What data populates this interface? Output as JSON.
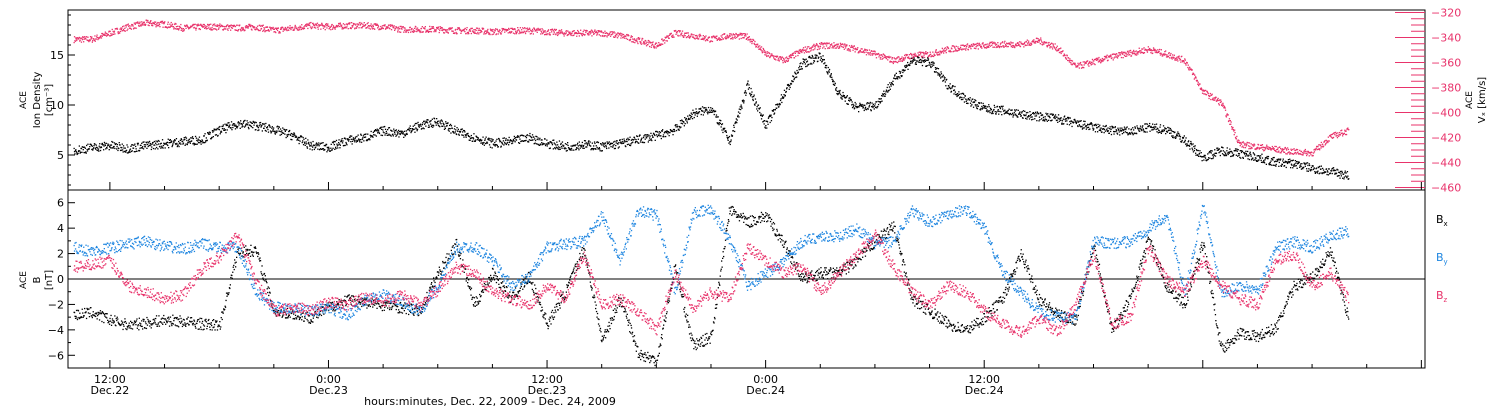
{
  "chart_data": [
    {
      "type": "scatter",
      "panel": "top",
      "ylabel_left": [
        "ACE",
        "Ion Density",
        "[cm⁻³]"
      ],
      "ylabel_right": [
        "ACE",
        "Vₓ [km/s]"
      ],
      "ylim_left": [
        1.5,
        19.5
      ],
      "ylim_right": [
        -462,
        -318
      ],
      "yticks_left": [
        5,
        10,
        15
      ],
      "yticks_right": [
        -320,
        -340,
        -360,
        -380,
        -400,
        -420,
        -440,
        -460
      ],
      "series": [
        {
          "name": "Ion Density",
          "axis": "left",
          "color": "#000000",
          "x": [
            -2,
            -1,
            0,
            1,
            2,
            3,
            4,
            5,
            6,
            7,
            8,
            9,
            10,
            11,
            12,
            13,
            14,
            15,
            16,
            17,
            18,
            19,
            20,
            21,
            22,
            23,
            24,
            25,
            26,
            27,
            28,
            29,
            30,
            31,
            32,
            33,
            34,
            35,
            36,
            37,
            38,
            39,
            40,
            41,
            42,
            43,
            44,
            45,
            46,
            47,
            48,
            49,
            50,
            51,
            52,
            53,
            54,
            55,
            56,
            57,
            58,
            59,
            60,
            61,
            62,
            63,
            64,
            65,
            66,
            67,
            68
          ],
          "y": [
            5.5,
            5.8,
            6,
            5.7,
            6,
            6.2,
            6.4,
            6.6,
            7.5,
            8.2,
            8,
            7.6,
            7,
            6,
            5.8,
            6.5,
            6.8,
            7.5,
            7.2,
            8,
            8.4,
            7.4,
            6.8,
            6.2,
            6.4,
            6.8,
            6.2,
            5.9,
            6.1,
            5.9,
            6.2,
            6.6,
            7,
            7.6,
            9.2,
            9.7,
            6.4,
            12,
            8,
            11.2,
            14.2,
            15,
            11.2,
            9.8,
            10,
            12.5,
            14.5,
            14.3,
            12,
            10.6,
            9.7,
            9.5,
            9.1,
            8.9,
            8.7,
            8.2,
            7.8,
            7.5,
            7.4,
            7.8,
            7.6,
            6.5,
            4.8,
            5.5,
            5.2,
            4.8,
            4.3,
            4.2,
            3.7,
            3.4,
            3.0
          ]
        },
        {
          "name": "Vx",
          "axis": "right",
          "color": "#e8336b",
          "x": [
            -2,
            -1,
            0,
            1,
            2,
            3,
            4,
            5,
            6,
            7,
            8,
            9,
            10,
            11,
            12,
            13,
            14,
            15,
            16,
            17,
            18,
            19,
            20,
            21,
            22,
            23,
            24,
            25,
            26,
            27,
            28,
            29,
            30,
            31,
            32,
            33,
            34,
            35,
            36,
            37,
            38,
            39,
            40,
            41,
            42,
            43,
            44,
            45,
            46,
            47,
            48,
            49,
            50,
            51,
            52,
            53,
            54,
            55,
            56,
            57,
            58,
            59,
            60,
            61,
            62,
            63,
            64,
            65,
            66,
            67,
            68
          ],
          "y": [
            -341,
            -341,
            -336,
            -331,
            -328,
            -329,
            -332,
            -331,
            -331,
            -332,
            -331,
            -334,
            -332,
            -330,
            -331,
            -330,
            -330,
            -331,
            -333,
            -333,
            -333,
            -334,
            -334,
            -335,
            -334,
            -334,
            -335,
            -336,
            -336,
            -336,
            -338,
            -342,
            -346,
            -336,
            -338,
            -341,
            -338,
            -339,
            -353,
            -358,
            -350,
            -346,
            -346,
            -349,
            -353,
            -358,
            -354,
            -353,
            -349,
            -347,
            -346,
            -345,
            -345,
            -342,
            -348,
            -363,
            -359,
            -355,
            -352,
            -349,
            -353,
            -358,
            -383,
            -392,
            -425,
            -427,
            -429,
            -431,
            -432,
            -419,
            -414
          ]
        }
      ]
    },
    {
      "type": "scatter",
      "panel": "bottom",
      "ylabel_left": [
        "ACE",
        "B",
        "[nT]"
      ],
      "ylim": [
        -7,
        7
      ],
      "yticks": [
        6,
        4,
        2,
        0,
        -2,
        -4,
        -6
      ],
      "zero_line": true,
      "series": [
        {
          "name": "Bx",
          "color": "#000000",
          "x": [
            -2,
            -1,
            0,
            1,
            2,
            3,
            4,
            5,
            6,
            7,
            8,
            9,
            10,
            11,
            12,
            13,
            14,
            15,
            16,
            17,
            18,
            19,
            20,
            21,
            22,
            23,
            24,
            25,
            26,
            27,
            28,
            29,
            30,
            31,
            32,
            33,
            34,
            35,
            36,
            37,
            38,
            39,
            40,
            41,
            42,
            43,
            44,
            45,
            46,
            47,
            48,
            49,
            50,
            51,
            52,
            53,
            54,
            55,
            56,
            57,
            58,
            59,
            60,
            61,
            62,
            63,
            64,
            65,
            66,
            67,
            68
          ],
          "y": [
            -2.8,
            -2.6,
            -3.2,
            -3.6,
            -3.4,
            -3.2,
            -3.3,
            -3.5,
            -3.6,
            2.2,
            2.3,
            -2.5,
            -2.7,
            -3.0,
            -2.2,
            -1.6,
            -1.8,
            -2.0,
            -2.2,
            -2.5,
            0.5,
            2.8,
            -2.0,
            0.5,
            -1.5,
            0.2,
            -3.5,
            -1.0,
            2.5,
            -4.8,
            -1.5,
            -5.8,
            -6.4,
            1.0,
            -5.2,
            -4.5,
            5.5,
            4.5,
            5.0,
            2.8,
            0.0,
            0.5,
            0.5,
            1.5,
            3.0,
            4.2,
            -1.5,
            -2.5,
            -3.5,
            -4.0,
            -3.0,
            -1.5,
            2.0,
            -1.5,
            -2.8,
            -3.2,
            2.8,
            -4.0,
            -1.5,
            3.2,
            -0.5,
            -2.0,
            3.0,
            -5.5,
            -4.2,
            -4.5,
            -3.8,
            -0.5,
            0.2,
            2.2,
            -3.2
          ]
        },
        {
          "name": "By",
          "color": "#1f86e0",
          "x": [
            -2,
            -1,
            0,
            1,
            2,
            3,
            4,
            5,
            6,
            7,
            8,
            9,
            10,
            11,
            12,
            13,
            14,
            15,
            16,
            17,
            18,
            19,
            20,
            21,
            22,
            23,
            24,
            25,
            26,
            27,
            28,
            29,
            30,
            31,
            32,
            33,
            34,
            35,
            36,
            37,
            38,
            39,
            40,
            41,
            42,
            43,
            44,
            45,
            46,
            47,
            48,
            49,
            50,
            51,
            52,
            53,
            54,
            55,
            56,
            57,
            58,
            59,
            60,
            61,
            62,
            63,
            64,
            65,
            66,
            67,
            68
          ],
          "y": [
            2.5,
            2.2,
            2.5,
            2.8,
            3.0,
            2.6,
            2.4,
            2.8,
            2.5,
            2.5,
            -1.0,
            -2.2,
            -2.2,
            -2.5,
            -2.2,
            -2.8,
            -1.6,
            -1.2,
            -1.8,
            -2.5,
            -0.5,
            2.5,
            2.6,
            1.5,
            -0.5,
            0.2,
            2.6,
            2.8,
            3.0,
            5.0,
            1.5,
            5.5,
            5.0,
            -1.0,
            5.2,
            5.5,
            3.2,
            -0.5,
            0.5,
            1.5,
            3.0,
            3.4,
            3.4,
            4.0,
            2.8,
            3.0,
            5.4,
            4.5,
            5.2,
            5.5,
            4.0,
            0.5,
            -1.0,
            -2.5,
            -3.0,
            -3.0,
            3.0,
            2.8,
            3.0,
            4.0,
            5.0,
            -1.0,
            5.8,
            -1.0,
            -0.5,
            -0.8,
            2.5,
            3.0,
            2.5,
            3.4,
            3.8
          ]
        },
        {
          "name": "Bz",
          "color": "#e8336b",
          "x": [
            -2,
            -1,
            0,
            1,
            2,
            3,
            4,
            5,
            6,
            7,
            8,
            9,
            10,
            11,
            12,
            13,
            14,
            15,
            16,
            17,
            18,
            19,
            20,
            21,
            22,
            23,
            24,
            25,
            26,
            27,
            28,
            29,
            30,
            31,
            32,
            33,
            34,
            35,
            36,
            37,
            38,
            39,
            40,
            41,
            42,
            43,
            44,
            45,
            46,
            47,
            48,
            49,
            50,
            51,
            52,
            53,
            54,
            55,
            56,
            57,
            58,
            59,
            60,
            61,
            62,
            63,
            64,
            65,
            66,
            67,
            68
          ],
          "y": [
            1.0,
            1.2,
            1.5,
            -0.5,
            -1.0,
            -1.5,
            -1.2,
            0.8,
            1.8,
            3.5,
            -0.2,
            -2.5,
            -2.2,
            -2.4,
            -1.8,
            -2.0,
            -1.4,
            -1.8,
            -1.2,
            -2.0,
            -0.8,
            1.0,
            0.5,
            -1.0,
            -1.5,
            -2.0,
            -0.5,
            -1.5,
            2.0,
            -2.0,
            -1.5,
            -2.5,
            -4.0,
            0.5,
            -2.2,
            -1.0,
            -1.5,
            2.5,
            1.5,
            0.5,
            1.0,
            -1.0,
            0.5,
            2.0,
            3.5,
            1.0,
            -1.0,
            -2.0,
            -0.5,
            -1.0,
            -2.5,
            -3.5,
            -4.2,
            -3.0,
            -4.2,
            -2.0,
            2.0,
            -3.5,
            -3.0,
            2.5,
            0.0,
            -1.0,
            1.5,
            -0.5,
            -1.5,
            -2.0,
            1.5,
            2.0,
            -0.5,
            0.5,
            -1.5
          ]
        }
      ]
    }
  ],
  "x_axis": {
    "ticks": [
      {
        "x": 0,
        "time": "12:00",
        "date": "Dec.22"
      },
      {
        "x": 12,
        "time": "0:00",
        "date": "Dec.23"
      },
      {
        "x": 24,
        "time": "12:00",
        "date": "Dec.23"
      },
      {
        "x": 36,
        "time": "0:00",
        "date": "Dec.24"
      },
      {
        "x": 48,
        "time": "12:00",
        "date": "Dec.24"
      }
    ],
    "label": "hours:minutes, Dec. 22, 2009 - Dec. 24, 2009"
  },
  "legend": [
    {
      "name": "B",
      "sub": "x",
      "color": "#000000"
    },
    {
      "name": "B",
      "sub": "y",
      "color": "#1f86e0"
    },
    {
      "name": "B",
      "sub": "z",
      "color": "#e8336b"
    }
  ]
}
